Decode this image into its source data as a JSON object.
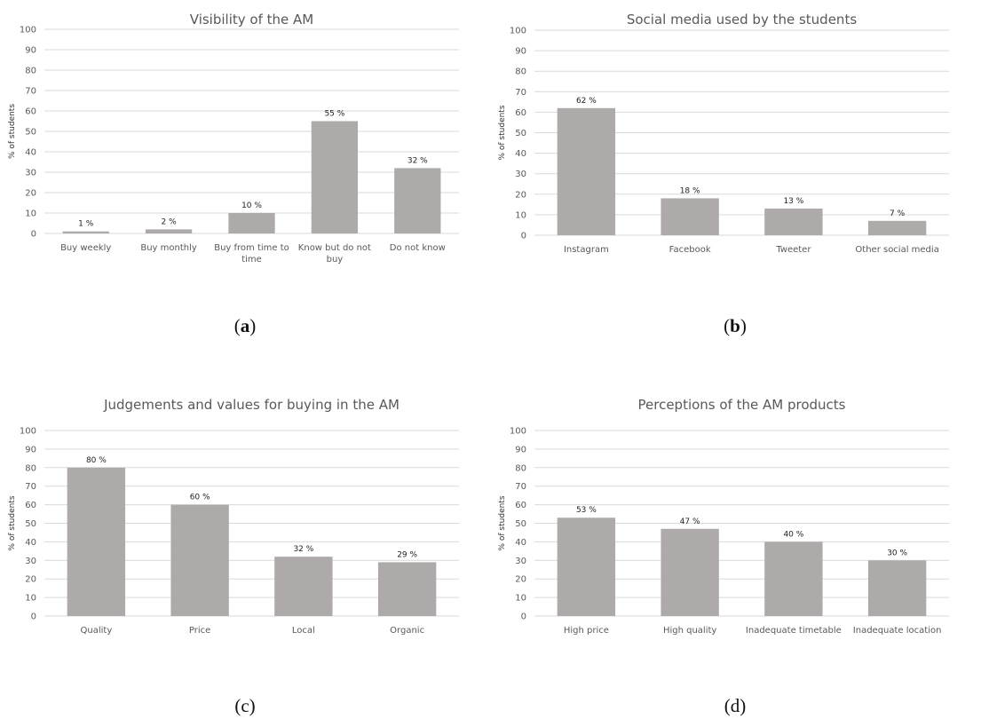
{
  "chart_data": [
    {
      "type": "bar",
      "title": "Visibility of the AM",
      "ylabel": "% of students",
      "xlabel": "",
      "ylim": [
        0,
        100
      ],
      "yticks": [
        0,
        10,
        20,
        30,
        40,
        50,
        60,
        70,
        80,
        90,
        100
      ],
      "categories": [
        "Buy weekly",
        "Buy monthly",
        "Buy from time to time",
        "Know but do not buy",
        "Do not know"
      ],
      "category_lines": [
        [
          "Buy weekly"
        ],
        [
          "Buy monthly"
        ],
        [
          "Buy from time to",
          "time"
        ],
        [
          "Know but do not",
          "buy"
        ],
        [
          "Do not know"
        ]
      ],
      "values": [
        1,
        2,
        10,
        55,
        32
      ],
      "labels": [
        "1 %",
        "2 %",
        "10 %",
        "55 %",
        "32 %"
      ],
      "grid": true,
      "bar_color": "#aeaaaa",
      "caption_letter": "a",
      "caption_bold": true
    },
    {
      "type": "bar",
      "title": "Social media used by the students",
      "ylabel": "% of students",
      "xlabel": "",
      "ylim": [
        0,
        100
      ],
      "yticks": [
        0,
        10,
        20,
        30,
        40,
        50,
        60,
        70,
        80,
        90,
        100
      ],
      "categories": [
        "Instagram",
        "Facebook",
        "Tweeter",
        "Other social media"
      ],
      "category_lines": [
        [
          "Instagram"
        ],
        [
          "Facebook"
        ],
        [
          "Tweeter"
        ],
        [
          "Other social media"
        ]
      ],
      "values": [
        62,
        18,
        13,
        7
      ],
      "labels": [
        "62 %",
        "18 %",
        "13 %",
        "7 %"
      ],
      "grid": true,
      "bar_color": "#aeaaaa",
      "caption_letter": "b",
      "caption_bold": true
    },
    {
      "type": "bar",
      "title": "Judgements and values for buying in the AM",
      "ylabel": "% of students",
      "xlabel": "",
      "ylim": [
        0,
        100
      ],
      "yticks": [
        0,
        10,
        20,
        30,
        40,
        50,
        60,
        70,
        80,
        90,
        100
      ],
      "categories": [
        "Quality",
        "Price",
        "Local",
        "Organic"
      ],
      "category_lines": [
        [
          "Quality"
        ],
        [
          "Price"
        ],
        [
          "Local"
        ],
        [
          "Organic"
        ]
      ],
      "values": [
        80,
        60,
        32,
        29
      ],
      "labels": [
        "80 %",
        "60 %",
        "32 %",
        "29 %"
      ],
      "grid": true,
      "bar_color": "#aeaaaa",
      "caption_letter": "c",
      "caption_bold": false
    },
    {
      "type": "bar",
      "title": "Perceptions of the AM products",
      "ylabel": "% of students",
      "xlabel": "",
      "ylim": [
        0,
        100
      ],
      "yticks": [
        0,
        10,
        20,
        30,
        40,
        50,
        60,
        70,
        80,
        90,
        100
      ],
      "categories": [
        "High price",
        "High quality",
        "Inadequate timetable",
        "Inadequate location"
      ],
      "category_lines": [
        [
          "High price"
        ],
        [
          "High quality"
        ],
        [
          "Inadequate timetable"
        ],
        [
          "Inadequate location"
        ]
      ],
      "values": [
        53,
        47,
        40,
        30
      ],
      "labels": [
        "53 %",
        "47 %",
        "40 %",
        "30 %"
      ],
      "grid": true,
      "bar_color": "#aeaaaa",
      "caption_letter": "d",
      "caption_bold": false
    }
  ],
  "captions": [
    {
      "open": "(",
      "letter": "a",
      "close": ")"
    },
    {
      "open": "(",
      "letter": "b",
      "close": ")"
    },
    {
      "open": "(",
      "letter": "c",
      "close": ")"
    },
    {
      "open": "(",
      "letter": "d",
      "close": ")"
    }
  ]
}
